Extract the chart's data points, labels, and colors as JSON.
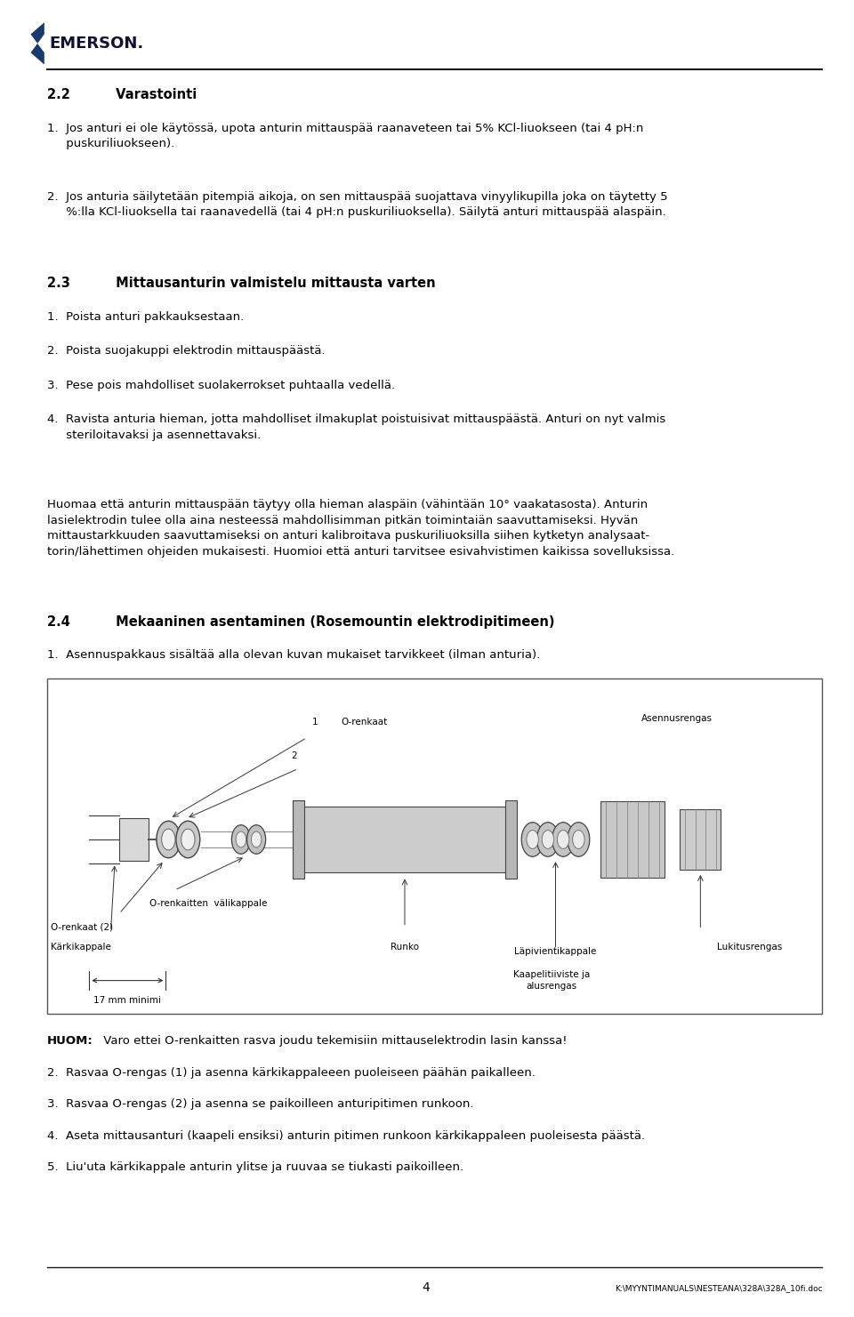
{
  "page_width": 9.6,
  "page_height": 14.81,
  "bg_color": "#ffffff",
  "text_color": "#000000",
  "logo_text": "EMERSON.",
  "footer_page_num": "4",
  "footer_path": "K:\\MYYNTIMANUALS\\NESTEANA\\328A\\328A_10fi.doc",
  "section_2_2_heading": "2.2          Varastointi",
  "section_2_3_heading": "2.3          Mittausanturin valmistelu mittausta varten",
  "section_2_4_heading": "2.4          Mekaaninen asentaminen (Rosemountin elektrodipitimeen)"
}
